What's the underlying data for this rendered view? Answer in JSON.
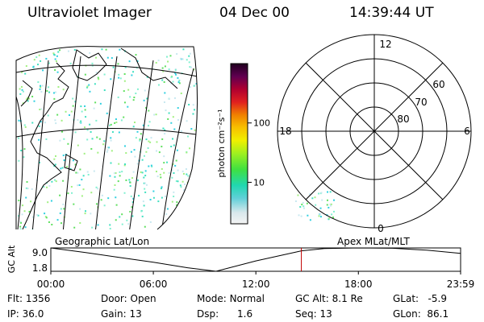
{
  "header": {
    "instrument": "Ultraviolet Imager",
    "date": "04 Dec 00",
    "time": "14:39:44 UT"
  },
  "colorbar": {
    "unit_label": "photon cm⁻²s⁻¹",
    "ticks": [
      {
        "label": "100",
        "value": 100
      },
      {
        "label": "10",
        "value": 10
      }
    ],
    "range": [
      2,
      1000
    ]
  },
  "polar_plot": {
    "mlt_labels": [
      "12",
      "6",
      "0",
      "18"
    ],
    "mlat_labels": [
      "60",
      "70",
      "80"
    ]
  },
  "timeline": {
    "left_label": "Geographic Lat/Lon",
    "right_label": "Apex MLat/MLT",
    "y_axis_label": "GC Alt",
    "y_ticks": [
      "9.0",
      "1.8"
    ],
    "x_ticks": [
      "00:00",
      "06:00",
      "12:00",
      "18:00",
      "23:59"
    ],
    "marker_color": "#c00000"
  },
  "info_rows": [
    [
      {
        "label": "Flt:",
        "value": "1356"
      },
      {
        "label": "Door:",
        "value": "Open"
      },
      {
        "label": "Mode:",
        "value": "Normal"
      },
      {
        "label": "GC Alt:",
        "value": "8.1 Re"
      },
      {
        "label": "GLat:",
        "value": "-5.9"
      }
    ],
    [
      {
        "label": "IP:",
        "value": "36.0"
      },
      {
        "label": "Gain:",
        "value": "13"
      },
      {
        "label": "Dsp:",
        "value": "1.6"
      },
      {
        "label": "Seq:",
        "value": "13"
      },
      {
        "label": "GLon:",
        "value": "86.1"
      }
    ]
  ],
  "chart_data": {
    "type": "line",
    "title": "",
    "xlabel": "",
    "ylabel": "GC Alt",
    "x": [
      "00:00",
      "02:00",
      "04:00",
      "06:00",
      "08:00",
      "09:40",
      "12:00",
      "14:40",
      "16:00",
      "18:00",
      "20:00",
      "22:00",
      "23:59"
    ],
    "series": [
      {
        "values": [
          9.0,
          7.6,
          6.1,
          4.6,
          2.9,
          1.8,
          5.0,
          8.1,
          8.8,
          9.0,
          8.9,
          8.3,
          7.3
        ]
      }
    ],
    "ylim": [
      1.8,
      9.0
    ],
    "current_time": "14:39:44"
  }
}
